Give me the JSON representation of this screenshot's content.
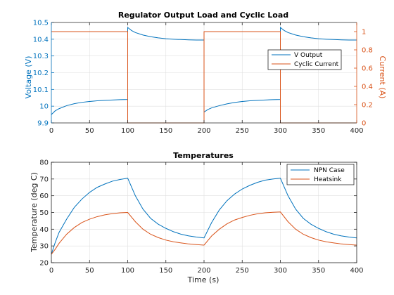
{
  "colors": {
    "blue": "#0072bd",
    "orange": "#d95319",
    "axis": "#262626",
    "grid": "#dfdfdf",
    "background": "#ffffff"
  },
  "chart_data": [
    {
      "type": "line",
      "title": "Regulator Output Load and Cyclic Load",
      "xlabel": "",
      "ylabel_left": "Voltage (V)",
      "ylabel_right": "Current (A)",
      "xlim": [
        0,
        400
      ],
      "ylim_left": [
        9.9,
        10.5
      ],
      "ylim_right": [
        0,
        1.1
      ],
      "xticks": [
        0,
        50,
        100,
        150,
        200,
        250,
        300,
        350,
        400
      ],
      "yticks_left": [
        9.9,
        10,
        10.1,
        10.2,
        10.3,
        10.4,
        10.5
      ],
      "yticks_right": [
        0,
        0.2,
        0.4,
        0.6,
        0.8,
        1
      ],
      "grid": true,
      "legend": {
        "placement": "right",
        "entries": [
          "V Output",
          "Cyclic Current"
        ]
      },
      "series": [
        {
          "name": "V Output",
          "axis": "left",
          "color": "#0072bd",
          "x": [
            0,
            5,
            10,
            20,
            30,
            40,
            50,
            60,
            70,
            80,
            90,
            100,
            100,
            105,
            110,
            120,
            130,
            140,
            150,
            160,
            170,
            180,
            190,
            200,
            200,
            205,
            210,
            220,
            230,
            240,
            250,
            260,
            270,
            280,
            290,
            300,
            300,
            305,
            310,
            320,
            330,
            340,
            350,
            360,
            370,
            380,
            390,
            400
          ],
          "y": [
            9.95,
            9.972,
            9.985,
            10.003,
            10.015,
            10.023,
            10.028,
            10.032,
            10.035,
            10.037,
            10.039,
            10.04,
            10.47,
            10.452,
            10.44,
            10.425,
            10.415,
            10.408,
            10.403,
            10.4,
            10.398,
            10.396,
            10.395,
            10.395,
            9.965,
            9.98,
            9.99,
            10.003,
            10.014,
            10.022,
            10.028,
            10.032,
            10.035,
            10.037,
            10.039,
            10.04,
            10.47,
            10.452,
            10.44,
            10.425,
            10.415,
            10.408,
            10.403,
            10.4,
            10.398,
            10.396,
            10.395,
            10.395
          ]
        },
        {
          "name": "Cyclic Current",
          "axis": "right",
          "color": "#d95319",
          "x": [
            0,
            100,
            100,
            200,
            200,
            300,
            300,
            400
          ],
          "y": [
            1,
            1,
            0,
            0,
            1,
            1,
            0,
            0
          ]
        }
      ]
    },
    {
      "type": "line",
      "title": "Temperatures",
      "xlabel": "Time (s)",
      "ylabel": "Temperature (deg C)",
      "xlim": [
        0,
        400
      ],
      "ylim": [
        20,
        80
      ],
      "xticks": [
        0,
        50,
        100,
        150,
        200,
        250,
        300,
        350,
        400
      ],
      "yticks": [
        20,
        30,
        40,
        50,
        60,
        70,
        80
      ],
      "grid": true,
      "legend": {
        "placement": "top-right",
        "entries": [
          "NPN Case",
          "Heatsink"
        ]
      },
      "series": [
        {
          "name": "NPN Case",
          "color": "#0072bd",
          "x": [
            0,
            5,
            10,
            20,
            30,
            40,
            50,
            60,
            70,
            80,
            90,
            100,
            110,
            120,
            130,
            140,
            150,
            160,
            170,
            180,
            190,
            200,
            210,
            220,
            230,
            240,
            250,
            260,
            270,
            280,
            290,
            300,
            310,
            320,
            330,
            340,
            350,
            360,
            370,
            380,
            390,
            400
          ],
          "y": [
            25,
            32,
            38,
            46,
            53,
            58,
            62,
            65,
            67,
            68.7,
            69.7,
            70.5,
            60,
            52,
            46.5,
            43,
            40.5,
            38.5,
            37,
            36,
            35.3,
            34.8,
            44,
            51.5,
            57,
            61,
            64,
            66.2,
            68,
            69.3,
            70,
            70.5,
            60,
            52,
            46.5,
            43,
            40.5,
            38.5,
            37,
            36,
            35.3,
            34.8
          ]
        },
        {
          "name": "Heatsink",
          "color": "#d95319",
          "x": [
            0,
            5,
            10,
            20,
            30,
            40,
            50,
            60,
            70,
            80,
            90,
            100,
            110,
            120,
            130,
            140,
            150,
            160,
            170,
            180,
            190,
            200,
            210,
            220,
            230,
            240,
            250,
            260,
            270,
            280,
            290,
            300,
            310,
            320,
            330,
            340,
            350,
            360,
            370,
            380,
            390,
            400
          ],
          "y": [
            25,
            28,
            31.5,
            37,
            41,
            44,
            46,
            47.5,
            48.6,
            49.3,
            49.8,
            50,
            44.5,
            40,
            37,
            35,
            33.5,
            32.5,
            31.8,
            31.2,
            30.8,
            30.5,
            36,
            40,
            43.2,
            45.5,
            47,
            48.3,
            49.2,
            49.8,
            50.1,
            50.3,
            44.5,
            40,
            37,
            35,
            33.5,
            32.5,
            31.8,
            31.2,
            30.8,
            30.5
          ]
        }
      ]
    }
  ]
}
